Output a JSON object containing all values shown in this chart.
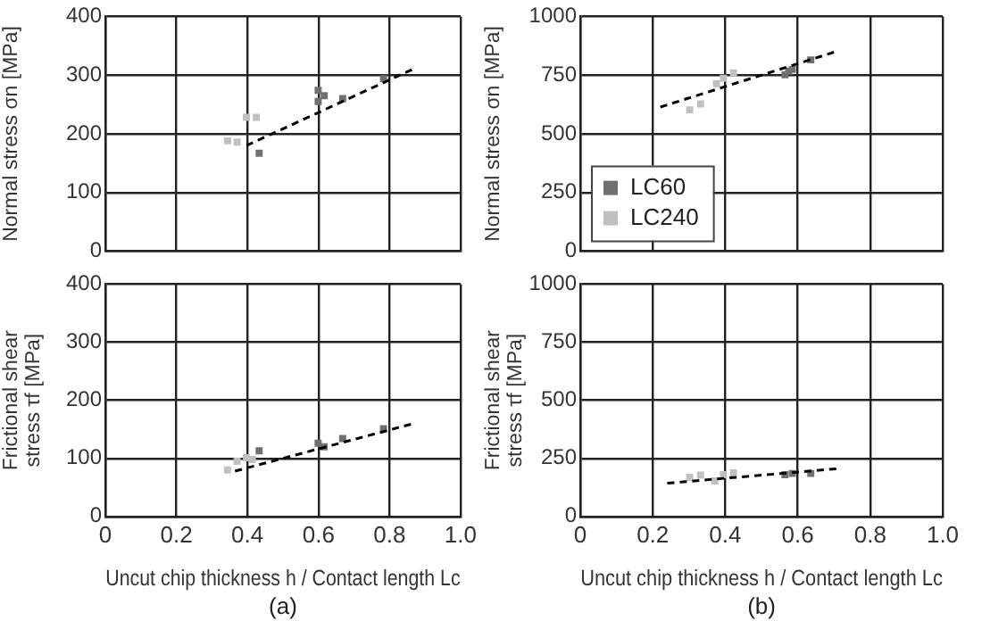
{
  "chart_data": [
    {
      "type": "scatter",
      "ylabel": "Normal stress σn [MPa]",
      "xlim": [
        0,
        1
      ],
      "xticks": [
        0,
        0.2,
        0.4,
        0.6,
        0.8,
        1
      ],
      "ylim": [
        0,
        400
      ],
      "yticks": [
        0,
        100,
        200,
        300,
        400
      ],
      "grid": true,
      "tick_labels": "y",
      "marker": "square",
      "series": [
        {
          "color": "#707070",
          "x": [
            0.433,
            0.599,
            0.599,
            0.616,
            0.668,
            0.783
          ],
          "values": [
            167,
            274,
            255,
            265,
            260,
            294
          ]
        },
        {
          "color": "#c0c0c0",
          "x": [
            0.344,
            0.371,
            0.397,
            0.425
          ],
          "values": [
            188,
            186,
            228,
            228
          ]
        },
        {
          "type": "line",
          "color": "#000000",
          "line_style": "dashed",
          "marker": "none",
          "x": [
            0.397,
            0.865
          ],
          "values": [
            180,
            310
          ]
        }
      ]
    },
    {
      "type": "scatter",
      "ylabel": "Normal stress σn [MPa]",
      "xlim": [
        0,
        1
      ],
      "xticks": [
        0,
        0.2,
        0.4,
        0.6,
        0.8,
        1
      ],
      "ylim": [
        0,
        1000
      ],
      "yticks": [
        0,
        250,
        500,
        750,
        1000
      ],
      "grid": true,
      "tick_labels": "y",
      "marker": "square",
      "legend": "bottom left",
      "series": [
        {
          "name": "LC60",
          "color": "#707070",
          "x": [
            0.565,
            0.575,
            0.585,
            0.636
          ],
          "values": [
            752,
            767,
            774,
            815
          ]
        },
        {
          "name": "LC240",
          "color": "#c0c0c0",
          "x": [
            0.302,
            0.332,
            0.376,
            0.395,
            0.423
          ],
          "values": [
            602,
            627,
            714,
            737,
            759
          ]
        },
        {
          "type": "line",
          "color": "#000000",
          "line_style": "dashed",
          "marker": "none",
          "x": [
            0.221,
            0.709
          ],
          "values": [
            614,
            852
          ]
        }
      ]
    },
    {
      "type": "scatter",
      "ylabel": "Frictional shear stress τf [MPa]",
      "xlabel": "Uncut chip thickness h / Contact length Lc",
      "annotations": [
        "(a)"
      ],
      "xlim": [
        0,
        1
      ],
      "xticks": [
        0,
        0.2,
        0.4,
        0.6,
        0.8,
        {
          "value": 1,
          "label": "1.0"
        }
      ],
      "ylim": [
        0,
        400
      ],
      "yticks": [
        0,
        100,
        200,
        300,
        400
      ],
      "grid": true,
      "marker": "square",
      "series": [
        {
          "color": "#707070",
          "x": [
            0.433,
            0.599,
            0.616,
            0.668,
            0.783
          ],
          "values": [
            113,
            126,
            120,
            134,
            151
          ]
        },
        {
          "color": "#c0c0c0",
          "x": [
            0.344,
            0.371,
            0.397,
            0.414
          ],
          "values": [
            80,
            95,
            101,
            98
          ]
        },
        {
          "type": "line",
          "color": "#000000",
          "line_style": "dashed",
          "marker": "none",
          "x": [
            0.365,
            0.862
          ],
          "values": [
            78,
            159
          ]
        }
      ]
    },
    {
      "type": "scatter",
      "ylabel": "Frictional shear stress τf [MPa]",
      "xlabel": "Uncut chip thickness h / Contact length Lc",
      "annotations": [
        "(b)"
      ],
      "xlim": [
        0,
        1
      ],
      "xticks": [
        0,
        0.2,
        0.4,
        0.6,
        0.8,
        {
          "value": 1,
          "label": "1.0"
        }
      ],
      "ylim": [
        0,
        1000
      ],
      "yticks": [
        0,
        250,
        500,
        750,
        1000
      ],
      "grid": true,
      "marker": "square",
      "series": [
        {
          "color": "#707070",
          "x": [
            0.565,
            0.585,
            0.636
          ],
          "values": [
            180,
            185,
            185
          ]
        },
        {
          "color": "#c0c0c0",
          "x": [
            0.302,
            0.332,
            0.371,
            0.395,
            0.423
          ],
          "values": [
            168,
            178,
            153,
            180,
            188
          ]
        },
        {
          "type": "line",
          "color": "#000000",
          "line_style": "dashed",
          "marker": "none",
          "x": [
            0.24,
            0.714
          ],
          "values": [
            143,
            206
          ]
        }
      ]
    }
  ]
}
